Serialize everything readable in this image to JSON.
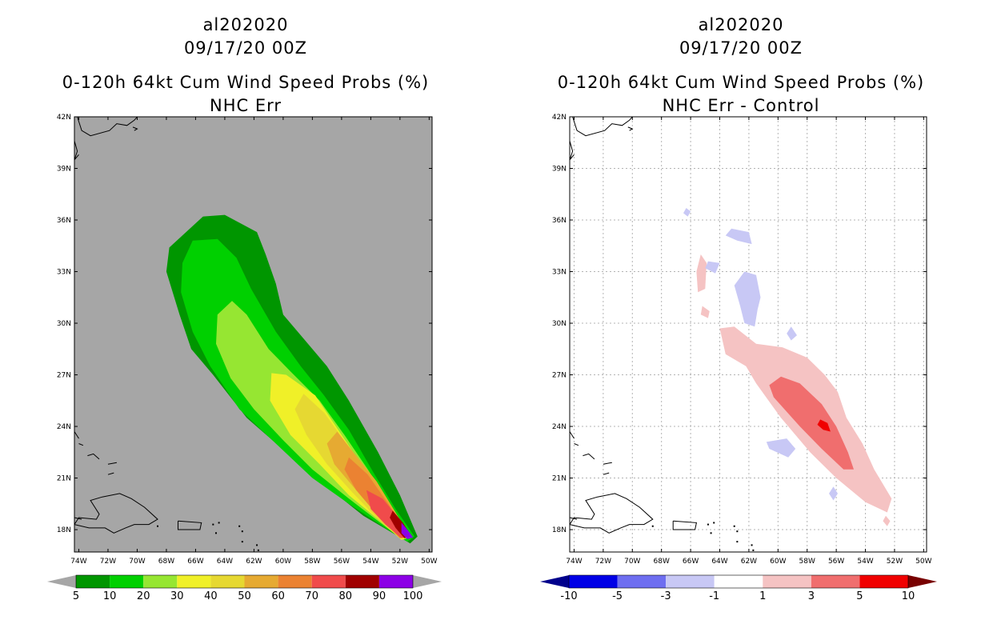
{
  "panels": [
    {
      "storm_id": "al202020",
      "datetime": "09/17/20 00Z",
      "product": "0-120h 64kt Cum Wind Speed Probs (%)",
      "subtitle": "NHC Err"
    },
    {
      "storm_id": "al202020",
      "datetime": "09/17/20 00Z",
      "product": "0-120h 64kt Cum Wind Speed Probs (%)",
      "subtitle": "NHC Err - Control"
    }
  ],
  "chart_data": [
    {
      "type": "heatmap",
      "title": "0-120h 64kt Cum Wind Speed Probs (%)",
      "subtitle": "NHC Err",
      "x_ticks": [
        "74W",
        "72W",
        "70W",
        "68W",
        "66W",
        "64W",
        "62W",
        "60W",
        "58W",
        "56W",
        "54W",
        "52W",
        "50W"
      ],
      "y_ticks": [
        "42N",
        "39N",
        "36N",
        "33N",
        "30N",
        "27N",
        "24N",
        "21N",
        "18N"
      ],
      "xlim": [
        -74.3,
        -49.8
      ],
      "ylim": [
        16.7,
        42.0
      ],
      "background": "#a6a6a6",
      "grid": false,
      "colorbar": {
        "labels": [
          "5",
          "10",
          "20",
          "30",
          "40",
          "50",
          "60",
          "70",
          "80",
          "90",
          "100"
        ],
        "colors": [
          "#009600",
          "#00d000",
          "#96e632",
          "#f0f028",
          "#e6d832",
          "#e6aa32",
          "#eb8232",
          "#f04b4b",
          "#a00000",
          "#8c00e6"
        ],
        "under_color": "#a6a6a6",
        "over_color": "#a6a6a6"
      },
      "levels": [
        {
          "min": 5,
          "color": "#009600",
          "polygon": [
            [
              -65.5,
              36.2
            ],
            [
              -64.0,
              36.3
            ],
            [
              -61.8,
              35.3
            ],
            [
              -61.2,
              34.0
            ],
            [
              -60.5,
              32.3
            ],
            [
              -60.0,
              30.5
            ],
            [
              -58.5,
              29.0
            ],
            [
              -57.0,
              27.5
            ],
            [
              -55.5,
              25.5
            ],
            [
              -53.5,
              22.5
            ],
            [
              -52.0,
              20.0
            ],
            [
              -50.8,
              17.6
            ],
            [
              -51.3,
              17.2
            ],
            [
              -52.5,
              17.8
            ],
            [
              -54.5,
              18.8
            ],
            [
              -57.0,
              20.5
            ],
            [
              -59.8,
              22.5
            ],
            [
              -62.5,
              24.5
            ],
            [
              -64.8,
              27.0
            ],
            [
              -66.3,
              28.5
            ],
            [
              -67.1,
              30.5
            ],
            [
              -68.0,
              33.0
            ],
            [
              -67.8,
              34.4
            ]
          ]
        },
        {
          "min": 10,
          "color": "#00d000",
          "polygon": [
            [
              -66.2,
              34.8
            ],
            [
              -64.5,
              34.9
            ],
            [
              -63.2,
              33.8
            ],
            [
              -62.2,
              32.0
            ],
            [
              -60.5,
              29.5
            ],
            [
              -58.8,
              27.5
            ],
            [
              -57.2,
              25.8
            ],
            [
              -55.5,
              23.8
            ],
            [
              -53.8,
              21.3
            ],
            [
              -52.3,
              19.2
            ],
            [
              -51.0,
              17.6
            ],
            [
              -51.5,
              17.3
            ],
            [
              -53.2,
              18.2
            ],
            [
              -55.5,
              19.5
            ],
            [
              -58.0,
              21.0
            ],
            [
              -60.5,
              23.0
            ],
            [
              -63.0,
              25.0
            ],
            [
              -65.0,
              27.5
            ],
            [
              -66.2,
              29.5
            ],
            [
              -67.0,
              31.8
            ],
            [
              -66.9,
              33.5
            ]
          ]
        },
        {
          "min": 20,
          "color": "#96e632",
          "polygon": [
            [
              -63.5,
              31.3
            ],
            [
              -62.5,
              30.5
            ],
            [
              -61.0,
              28.5
            ],
            [
              -59.5,
              27.2
            ],
            [
              -57.5,
              25.5
            ],
            [
              -55.8,
              23.5
            ],
            [
              -54.2,
              21.5
            ],
            [
              -52.5,
              19.2
            ],
            [
              -51.2,
              17.6
            ],
            [
              -51.8,
              17.4
            ],
            [
              -53.5,
              18.5
            ],
            [
              -55.5,
              19.8
            ],
            [
              -58.0,
              21.5
            ],
            [
              -60.0,
              23.2
            ],
            [
              -62.0,
              25.0
            ],
            [
              -63.6,
              26.8
            ],
            [
              -64.6,
              28.8
            ],
            [
              -64.5,
              30.5
            ]
          ]
        },
        {
          "min": 30,
          "color": "#f0f028",
          "polygon": [
            [
              -60.8,
              27.1
            ],
            [
              -59.8,
              27.0
            ],
            [
              -57.8,
              25.8
            ],
            [
              -56.0,
              23.5
            ],
            [
              -54.4,
              21.5
            ],
            [
              -52.7,
              19.2
            ],
            [
              -51.3,
              17.6
            ],
            [
              -51.9,
              17.4
            ],
            [
              -53.5,
              18.6
            ],
            [
              -55.5,
              20.0
            ],
            [
              -57.5,
              21.8
            ],
            [
              -59.5,
              23.5
            ],
            [
              -60.9,
              25.5
            ]
          ]
        },
        {
          "min": 40,
          "color": "#e6d832",
          "polygon": [
            [
              -58.6,
              25.9
            ],
            [
              -57.2,
              24.8
            ],
            [
              -55.5,
              22.8
            ],
            [
              -54.0,
              21.0
            ],
            [
              -52.5,
              19.0
            ],
            [
              -51.3,
              17.6
            ],
            [
              -52.0,
              17.5
            ],
            [
              -53.5,
              18.6
            ],
            [
              -55.3,
              20.2
            ],
            [
              -57.0,
              21.8
            ],
            [
              -58.4,
              23.5
            ],
            [
              -59.2,
              25.0
            ]
          ]
        },
        {
          "min": 50,
          "color": "#e6aa32",
          "polygon": [
            [
              -56.3,
              23.7
            ],
            [
              -55.0,
              22.3
            ],
            [
              -53.6,
              20.8
            ],
            [
              -52.3,
              19.0
            ],
            [
              -51.3,
              17.6
            ],
            [
              -52.0,
              17.5
            ],
            [
              -53.4,
              18.7
            ],
            [
              -55.0,
              20.3
            ],
            [
              -56.5,
              21.8
            ],
            [
              -57.0,
              23.0
            ]
          ]
        },
        {
          "min": 60,
          "color": "#eb8232",
          "polygon": [
            [
              -55.5,
              22.2
            ],
            [
              -54.2,
              21.2
            ],
            [
              -52.8,
              19.5
            ],
            [
              -51.5,
              17.7
            ],
            [
              -52.0,
              17.5
            ],
            [
              -53.5,
              18.8
            ],
            [
              -55.0,
              20.3
            ],
            [
              -55.8,
              21.5
            ]
          ]
        },
        {
          "min": 70,
          "color": "#f04b4b",
          "polygon": [
            [
              -54.3,
              20.3
            ],
            [
              -53.2,
              19.8
            ],
            [
              -52.0,
              18.6
            ],
            [
              -51.3,
              17.6
            ],
            [
              -51.9,
              17.5
            ],
            [
              -53.0,
              18.3
            ],
            [
              -54.0,
              19.2
            ]
          ]
        },
        {
          "min": 80,
          "color": "#a00000",
          "polygon": [
            [
              -52.5,
              19.1
            ],
            [
              -51.8,
              18.4
            ],
            [
              -51.2,
              17.6
            ],
            [
              -51.7,
              17.5
            ],
            [
              -52.3,
              18.1
            ],
            [
              -52.7,
              18.7
            ]
          ]
        },
        {
          "min": 90,
          "color": "#8c00e6",
          "polygon": [
            [
              -51.9,
              18.4
            ],
            [
              -51.4,
              17.9
            ],
            [
              -51.1,
              17.55
            ],
            [
              -51.5,
              17.45
            ],
            [
              -51.9,
              17.8
            ]
          ]
        }
      ]
    },
    {
      "type": "heatmap",
      "title": "0-120h 64kt Cum Wind Speed Probs (%)",
      "subtitle": "NHC Err - Control",
      "x_ticks": [
        "74W",
        "72W",
        "70W",
        "68W",
        "66W",
        "64W",
        "62W",
        "60W",
        "58W",
        "56W",
        "54W",
        "52W",
        "50W"
      ],
      "y_ticks": [
        "42N",
        "39N",
        "36N",
        "33N",
        "30N",
        "27N",
        "24N",
        "21N",
        "18N"
      ],
      "xlim": [
        -74.3,
        -49.8
      ],
      "ylim": [
        16.7,
        42.0
      ],
      "background": "#ffffff",
      "grid": true,
      "colorbar": {
        "labels": [
          "-10",
          "-5",
          "-3",
          "-1",
          "1",
          "3",
          "5",
          "10"
        ],
        "colors": [
          "#0000e6",
          "#6e6ef0",
          "#c8c8f5",
          "#ffffff",
          "#f5c3c3",
          "#f06e6e",
          "#f00000"
        ],
        "under_color": "#00008c",
        "over_color": "#780000"
      },
      "levels": [
        {
          "range": "1 to 3",
          "color": "#f5c3c3",
          "polygon": [
            [
              -59.7,
              28.6
            ],
            [
              -58.0,
              28.0
            ],
            [
              -56.8,
              27.0
            ],
            [
              -55.9,
              26.0
            ],
            [
              -55.3,
              24.5
            ],
            [
              -54.2,
              23.0
            ],
            [
              -53.4,
              21.5
            ],
            [
              -52.2,
              19.8
            ],
            [
              -52.5,
              19.0
            ],
            [
              -54.0,
              19.6
            ],
            [
              -56.0,
              21.0
            ],
            [
              -57.8,
              22.5
            ],
            [
              -59.8,
              24.5
            ],
            [
              -61.5,
              26.5
            ],
            [
              -62.2,
              27.5
            ],
            [
              -63.6,
              28.2
            ],
            [
              -64.0,
              29.7
            ],
            [
              -63.0,
              29.8
            ],
            [
              -61.5,
              28.8
            ]
          ]
        },
        {
          "range": "1 to 3",
          "color": "#f5c3c3",
          "polygon": [
            [
              -65.3,
              34.0
            ],
            [
              -64.9,
              33.5
            ],
            [
              -65.0,
              32.0
            ],
            [
              -65.5,
              31.8
            ],
            [
              -65.6,
              33.0
            ]
          ]
        },
        {
          "range": "1 to 3",
          "color": "#f5c3c3",
          "polygon": [
            [
              -65.2,
              31.0
            ],
            [
              -64.7,
              30.7
            ],
            [
              -64.8,
              30.3
            ],
            [
              -65.3,
              30.5
            ]
          ]
        },
        {
          "range": "1 to 3",
          "color": "#f5c3c3",
          "polygon": [
            [
              -52.6,
              18.8
            ],
            [
              -52.3,
              18.5
            ],
            [
              -52.5,
              18.2
            ],
            [
              -52.8,
              18.5
            ]
          ]
        },
        {
          "range": "3 to 5",
          "color": "#f06e6e",
          "polygon": [
            [
              -59.8,
              26.9
            ],
            [
              -58.5,
              26.5
            ],
            [
              -57.0,
              25.3
            ],
            [
              -56.0,
              24.0
            ],
            [
              -55.2,
              22.5
            ],
            [
              -54.8,
              21.5
            ],
            [
              -55.5,
              21.5
            ],
            [
              -57.0,
              22.7
            ],
            [
              -58.5,
              24.0
            ],
            [
              -60.3,
              25.7
            ],
            [
              -60.6,
              26.4
            ]
          ]
        },
        {
          "range": "5 to 10",
          "color": "#f00000",
          "polygon": [
            [
              -57.1,
              24.4
            ],
            [
              -56.6,
              24.2
            ],
            [
              -56.4,
              23.7
            ],
            [
              -56.9,
              23.8
            ],
            [
              -57.3,
              24.1
            ]
          ]
        },
        {
          "range": "-3 to -1",
          "color": "#c8c8f5",
          "polygon": [
            [
              -62.3,
              33.0
            ],
            [
              -61.5,
              32.8
            ],
            [
              -61.2,
              31.5
            ],
            [
              -61.4,
              30.8
            ],
            [
              -61.6,
              29.8
            ],
            [
              -62.3,
              30.0
            ],
            [
              -62.6,
              31.0
            ],
            [
              -63.0,
              32.2
            ]
          ]
        },
        {
          "range": "-3 to -1",
          "color": "#c8c8f5",
          "polygon": [
            [
              -63.2,
              35.5
            ],
            [
              -62.0,
              35.3
            ],
            [
              -61.8,
              34.6
            ],
            [
              -62.8,
              34.8
            ],
            [
              -63.6,
              35.1
            ]
          ]
        },
        {
          "range": "-3 to -1",
          "color": "#c8c8f5",
          "polygon": [
            [
              -64.8,
              33.6
            ],
            [
              -64.0,
              33.5
            ],
            [
              -64.3,
              32.9
            ],
            [
              -65.0,
              33.2
            ]
          ]
        },
        {
          "range": "-3 to -1",
          "color": "#c8c8f5",
          "polygon": [
            [
              -66.3,
              36.7
            ],
            [
              -66.0,
              36.5
            ],
            [
              -66.2,
              36.2
            ],
            [
              -66.5,
              36.4
            ]
          ]
        },
        {
          "range": "-3 to -1",
          "color": "#c8c8f5",
          "polygon": [
            [
              -59.4,
              23.3
            ],
            [
              -58.8,
              22.7
            ],
            [
              -59.3,
              22.2
            ],
            [
              -60.6,
              22.7
            ],
            [
              -60.8,
              23.1
            ]
          ]
        },
        {
          "range": "-3 to -1",
          "color": "#c8c8f5",
          "polygon": [
            [
              -59.1,
              29.8
            ],
            [
              -58.7,
              29.3
            ],
            [
              -59.1,
              29.0
            ],
            [
              -59.4,
              29.4
            ]
          ]
        },
        {
          "range": "-3 to -1",
          "color": "#c8c8f5",
          "polygon": [
            [
              -56.2,
              20.5
            ],
            [
              -55.9,
              20.1
            ],
            [
              -56.2,
              19.7
            ],
            [
              -56.5,
              20.1
            ]
          ]
        }
      ]
    }
  ]
}
